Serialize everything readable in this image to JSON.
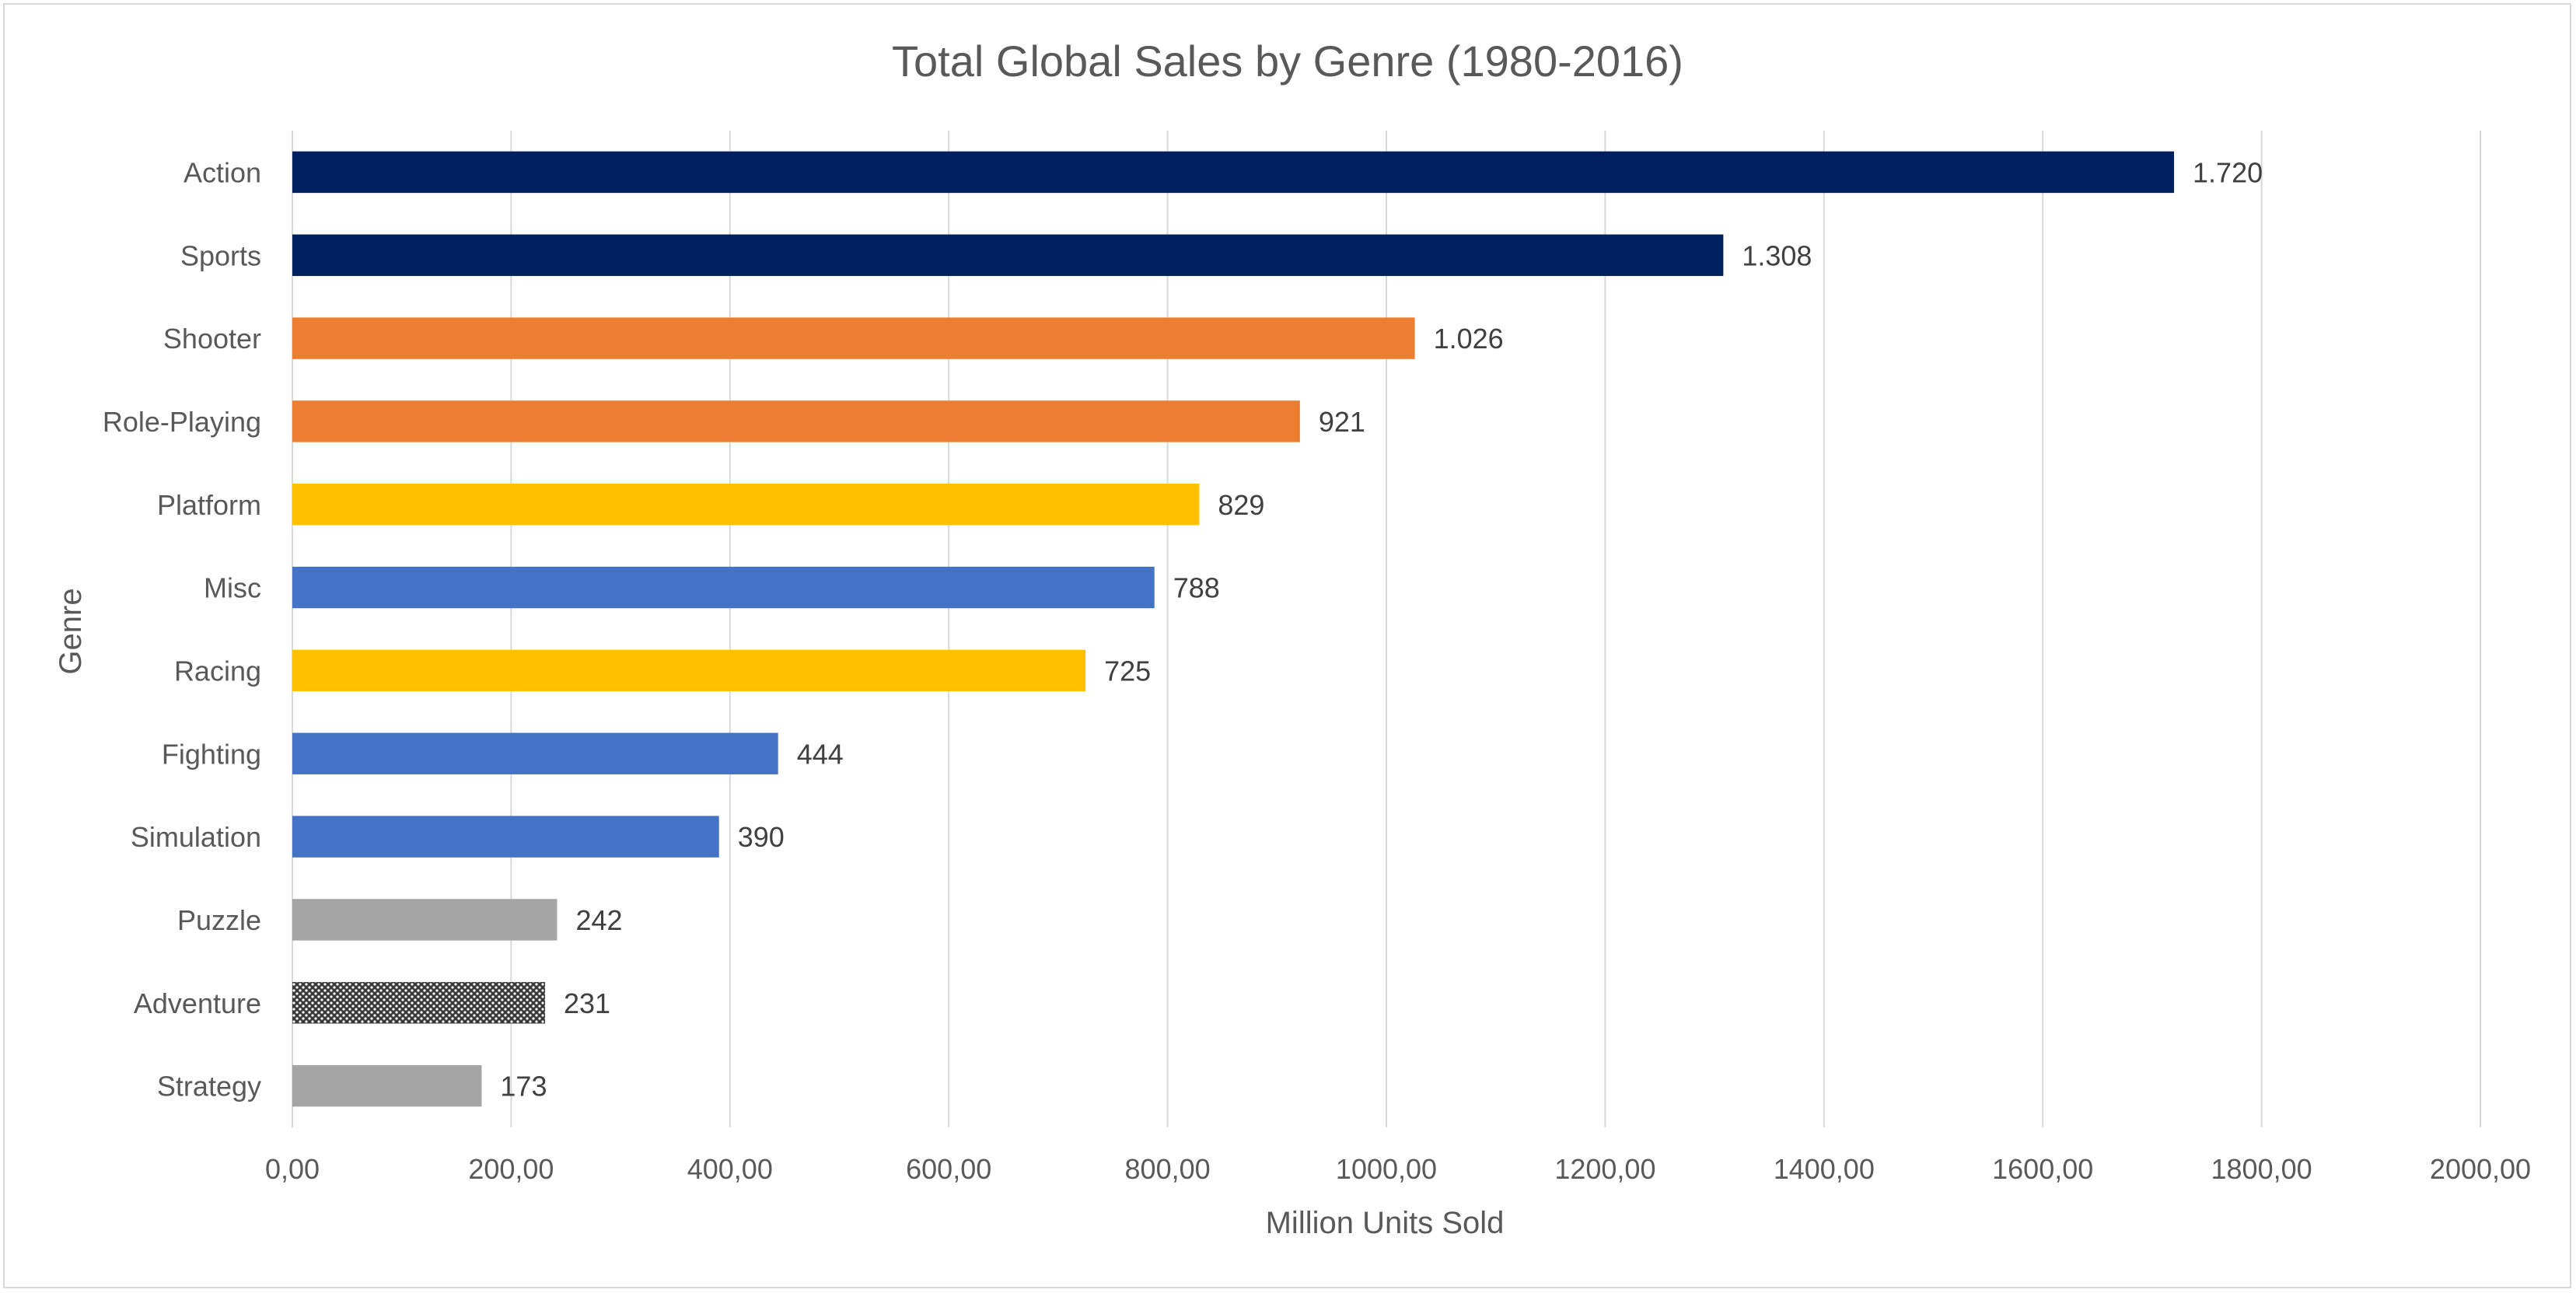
{
  "chart_data": {
    "type": "bar",
    "orientation": "horizontal",
    "title": "Total Global Sales by Genre (1980-2016)",
    "xlabel": "Million Units Sold",
    "ylabel": "Genre",
    "xlim": [
      0,
      2000
    ],
    "x_ticks": [
      "0,00",
      "200,00",
      "400,00",
      "600,00",
      "800,00",
      "1000,00",
      "1200,00",
      "1400,00",
      "1600,00",
      "1800,00",
      "2000,00"
    ],
    "grid": "vertical",
    "legend": "none",
    "categories": [
      "Action",
      "Sports",
      "Shooter",
      "Role-Playing",
      "Platform",
      "Misc",
      "Racing",
      "Fighting",
      "Simulation",
      "Puzzle",
      "Adventure",
      "Strategy"
    ],
    "values": [
      1720,
      1308,
      1026,
      921,
      829,
      788,
      725,
      444,
      390,
      242,
      231,
      173
    ],
    "data_labels": [
      "1.720",
      "1.308",
      "1.026",
      "921",
      "829",
      "788",
      "725",
      "444",
      "390",
      "242",
      "231",
      "173"
    ],
    "colors": [
      "#002060",
      "#002060",
      "#ED7D31",
      "#ED7D31",
      "#FFC000",
      "#4472C4",
      "#FFC000",
      "#4472C4",
      "#4472C4",
      "#A5A5A5",
      "#595959",
      "#A5A5A5"
    ],
    "patterns": [
      "solid",
      "solid",
      "solid",
      "solid",
      "solid",
      "solid",
      "solid",
      "solid",
      "solid",
      "solid",
      "dotted",
      "solid"
    ]
  }
}
